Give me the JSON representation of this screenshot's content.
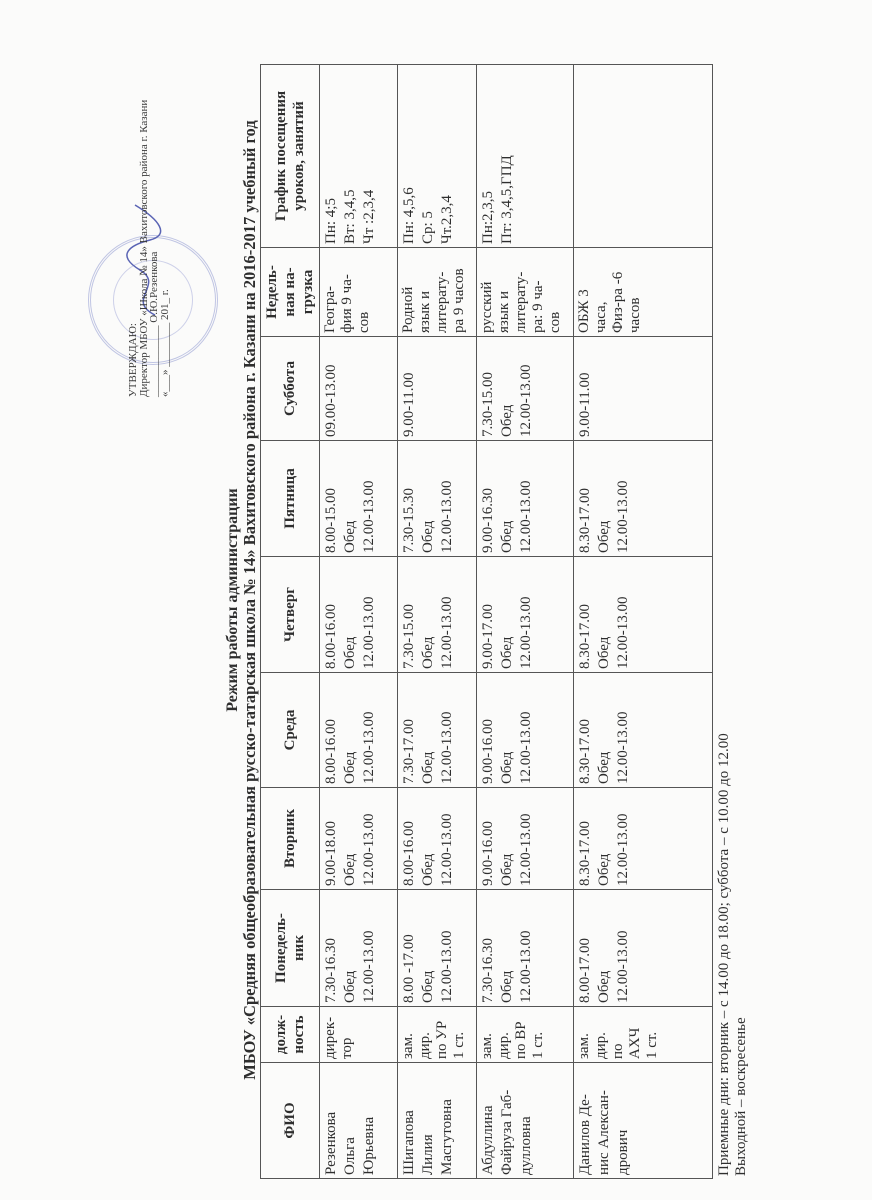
{
  "approval": {
    "line1": "УТВЕРЖДАЮ:",
    "line2": "Директор МБОУ «Школа № 14» Вахитовского района г. Казани",
    "line3": "_____________ О.Ю.Резенкова",
    "line4": "«___» ________ 201_ г."
  },
  "title": {
    "line1": "Режим работы администрации",
    "line2": "МБОУ «Средняя общеобразовательная русско-татарская школа № 14» Вахитовского района г. Казани на 2016-2017 учебный год"
  },
  "table": {
    "headers": [
      "ФИО",
      "долж-\nность",
      "Понедель-\nник",
      "Вторник",
      "Среда",
      "Четверг",
      "Пятница",
      "Суббота",
      "Недель-\nная на-\nгрузка",
      "График посещения\nуроков, занятий"
    ],
    "rows": [
      [
        "Резенкова\nОльга\nЮрьевна",
        "дирек-\nтор",
        "7.30-16.30\nОбед\n12.00-13.00",
        "9.00-18.00\nОбед\n12.00-13.00",
        "8.00-16.00\nОбед\n12.00-13.00",
        "8.00-16.00\nОбед\n12.00-13.00",
        "8.00-15.00\nОбед\n12.00-13.00",
        "09.00-13.00",
        "Геогра-\nфия 9 ча-\nсов",
        "Пн: 4;5\nВт: 3,4,5\nЧт :2,3,4"
      ],
      [
        "Шигапова\nЛилия\nМасгутовна",
        "зам.\nдир.\nпо УР\n1 ст.",
        "8.00 -17.00\nОбед\n12.00-13.00",
        "8.00-16.00\nОбед\n12.00-13.00",
        "7.30-17.00\nОбед\n12.00-13.00",
        "7.30-15.00\nОбед\n12.00-13.00",
        "7.30-15.30\nОбед\n12.00-13.00",
        "9.00-11.00",
        "Родной\nязык и\nлитерату-\nра 9 часов",
        "Пн: 4,5,6\nСр: 5\nЧт.2,3,4"
      ],
      [
        "Абдуллина\nФайруза Габ-\nдулловна",
        "зам.\nдир.\nпо ВР\n1 ст.",
        "7.30-16.30\nОбед\n12.00-13.00",
        "9.00-16.00\nОбед\n12.00-13.00",
        "9.00-16.00\nОбед\n12.00-13.00",
        "9.00-17.00\nОбед\n12.00-13.00",
        "9.00-16.30\nОбед\n12.00-13.00",
        "7.30-15.00\nОбед\n12.00-13.00",
        "русский\nязык и\nлитерату-\nра: 9 ча-\nсов",
        "Пн:2,3,5\nПт: 3,4,5,ГПД"
      ],
      [
        "Данилов Де-\nнис Алексан-\nдрович",
        "зам.\nдир.\nпо\nАХЧ\n1 ст.",
        "8.00-17.00\nОбед\n12.00-13.00",
        "8.30-17.00\nОбед\n12.00-13.00",
        "8.30-17.00\nОбед\n12.00-13.00",
        "8.30-17.00\nОбед\n12.00-13.00",
        "8.30-17.00\nОбед\n12.00-13.00",
        "9.00-11.00",
        "ОБЖ 3\nчаса,\nФиз-ра -6\nчасов",
        ""
      ]
    ]
  },
  "footer": {
    "line1": "Приемные дни: вторник – с 14.00 до 18.00; суббота – с 10.00 до 12.00",
    "line2": "Выходной – воскресенье"
  },
  "colors": {
    "stamp": "#7882c8",
    "text": "#2e2e2e"
  }
}
